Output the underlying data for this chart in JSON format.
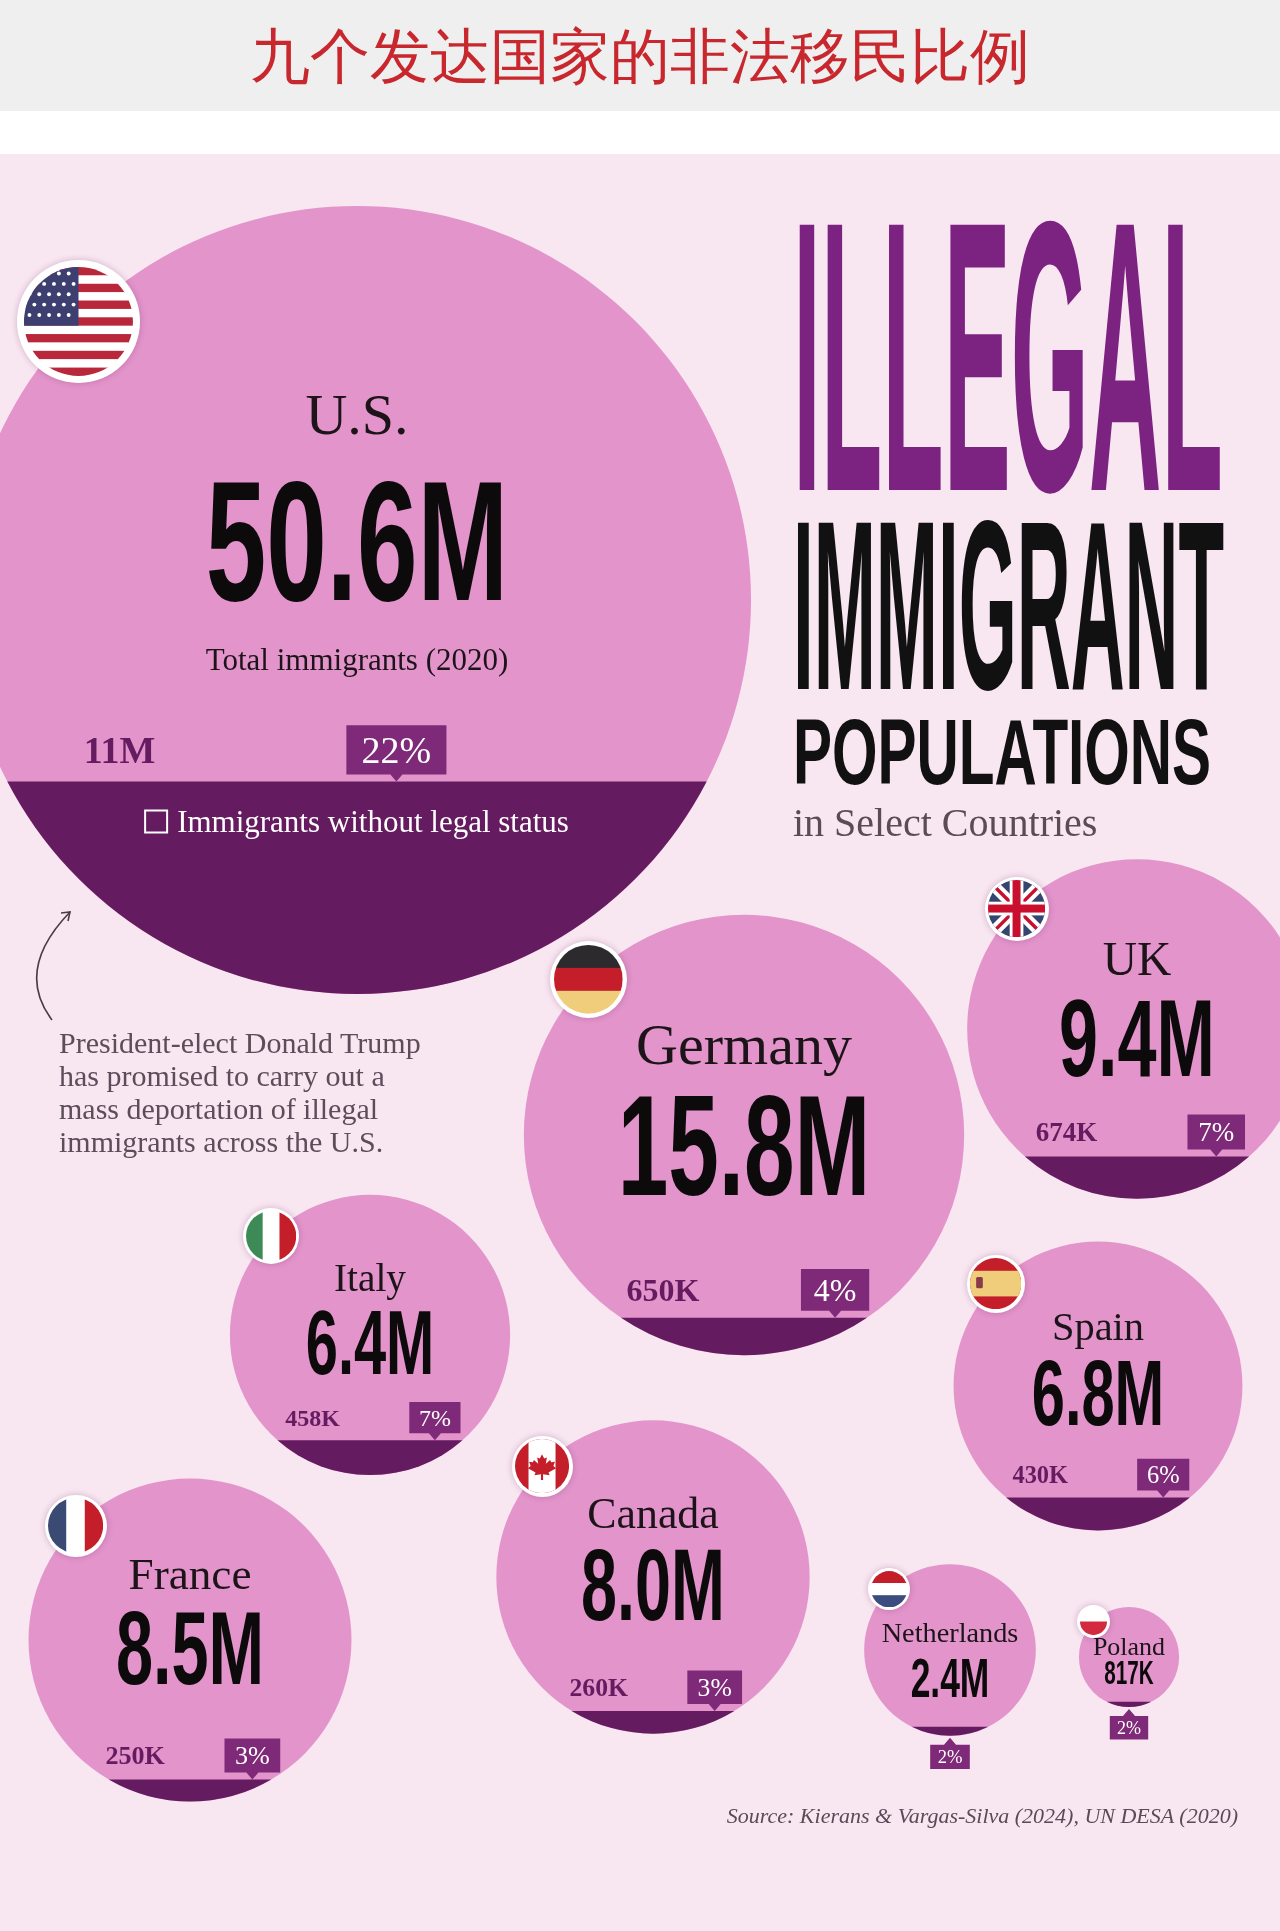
{
  "chart_data": {
    "type": "other",
    "title": "九个发达国家的非法移民比例",
    "subtitle": "ILLEGAL IMMIGRANT POPULATIONS",
    "categories": [
      "U.S.",
      "Germany",
      "UK",
      "Italy",
      "Spain",
      "France",
      "Canada",
      "Netherlands",
      "Poland"
    ],
    "series": [
      {
        "name": "Total immigrants (2020)",
        "color": "#e294cb",
        "values": [
          50600000,
          15800000,
          9400000,
          6400000,
          6800000,
          8500000,
          8000000,
          2400000,
          817000
        ],
        "value_labels": [
          "50.6M",
          "15.8M",
          "9.4M",
          "6.4M",
          "6.8M",
          "8.5M",
          "8.0M",
          "2.4M",
          "817K"
        ]
      },
      {
        "name": "Immigrants without legal status",
        "color": "#651b5f",
        "values": [
          11000000,
          650000,
          674000,
          458000,
          430000,
          250000,
          260000,
          null,
          null
        ],
        "value_labels": [
          "11M",
          "650K",
          "674K",
          "458K",
          "430K",
          "250K",
          "260K",
          null,
          null
        ]
      },
      {
        "color": "#7f2a78",
        "values": [
          22,
          4,
          7,
          7,
          6,
          3,
          3,
          2,
          2
        ],
        "value_labels": [
          "22%",
          "4%",
          "7%",
          "7%",
          "6%",
          "3%",
          "3%",
          "2%",
          "2%"
        ]
      }
    ],
    "annotations": [
      "in Select Countries",
      "President-elect Donald Trump has promised to carry out a mass deportation of illegal immigrants across the U.S.",
      "Source: Kierans & Vargas-Silva (2024), UN DESA (2020)"
    ]
  }
}
